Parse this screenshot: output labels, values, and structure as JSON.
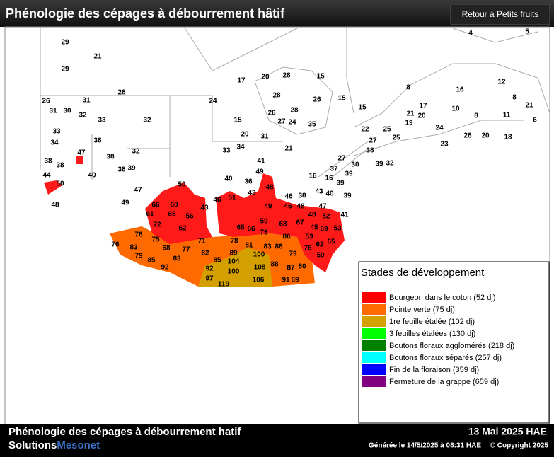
{
  "header": {
    "title": "Phénologie des cépages à débourrement hâtif",
    "button": "Retour à Petits fruits"
  },
  "map": {
    "station_values": [
      29,
      21,
      29,
      28,
      26,
      31,
      31,
      30,
      32,
      33,
      32,
      33,
      34,
      38,
      47,
      38,
      32,
      38,
      38,
      38,
      39,
      44,
      40,
      50,
      47,
      49,
      48,
      17,
      20,
      28,
      15,
      24,
      28,
      26,
      15,
      26,
      28,
      27,
      24,
      35,
      15,
      20,
      31,
      33,
      34,
      21,
      41,
      49,
      40,
      36,
      43,
      48,
      46,
      51,
      16,
      5,
      4,
      8,
      16,
      12,
      15,
      17,
      21,
      20,
      19,
      10,
      8,
      21,
      8,
      11,
      6,
      22,
      25,
      27,
      25,
      24,
      26,
      20,
      18,
      23,
      38,
      27,
      30,
      39,
      32,
      37,
      16,
      39,
      39,
      43,
      40,
      39,
      46,
      38,
      49,
      46,
      48,
      47,
      41,
      48,
      52,
      50,
      66,
      60,
      43,
      61,
      65,
      56,
      72,
      62,
      76,
      75,
      71,
      76,
      83,
      68,
      77,
      79,
      85,
      83,
      82,
      92,
      59,
      68,
      67,
      65,
      66,
      75,
      86,
      45,
      69,
      53,
      78,
      81,
      83,
      88,
      53,
      62,
      65,
      76,
      89,
      100,
      79,
      59,
      85,
      104,
      88,
      87,
      80,
      92,
      100,
      108,
      97,
      106,
      91,
      69,
      119
    ]
  },
  "legend": {
    "title": "Stades de développement",
    "items": [
      {
        "label": "Bourgeon dans le coton (52 dj)",
        "color": "#ff0000"
      },
      {
        "label": "Pointe verte (75 dj)",
        "color": "#ff6a00"
      },
      {
        "label": "1re feuille étalée (102 dj)",
        "color": "#d4a000"
      },
      {
        "label": "3 feuilles étalées (130 dj)",
        "color": "#00ff00"
      },
      {
        "label": "Boutons floraux agglomérés (218 dj)",
        "color": "#008000"
      },
      {
        "label": "Boutons floraux séparés (257 dj)",
        "color": "#00ffff"
      },
      {
        "label": "Fin de la floraison (359 dj)",
        "color": "#0000ff"
      },
      {
        "label": "Fermeture de la grappe (659 dj)",
        "color": "#800080"
      }
    ]
  },
  "footer": {
    "title": "Phénologie des cépages à débourrement hatif",
    "brand_1": "Solutions",
    "brand_2": "Mesonet",
    "date": "13 Mai 2025 HAE",
    "generated": "Générée le 14/5/2025 à 08:31 HAE",
    "copyright": "© Copyright 2025"
  }
}
